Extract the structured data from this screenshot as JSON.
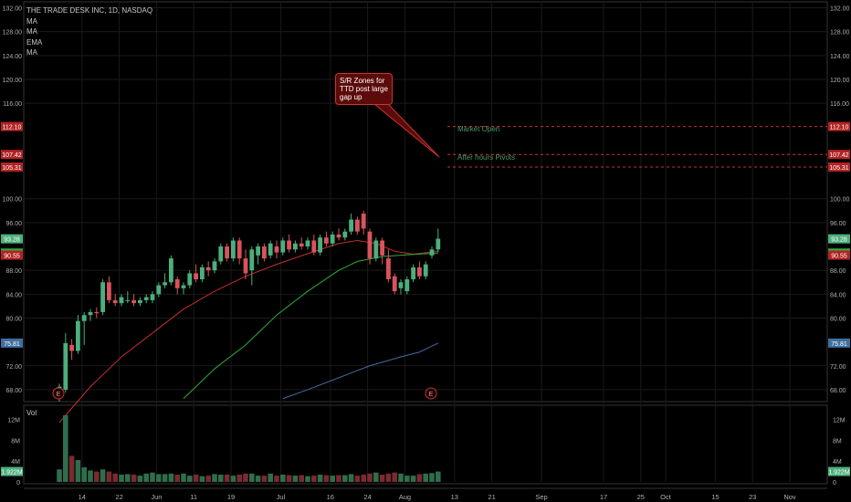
{
  "legend": {
    "symbol": "THE TRADE DESK INC, 1D, NASDAQ",
    "indicators": [
      "MA",
      "MA",
      "EMA",
      "MA"
    ]
  },
  "volume_label": "Vol",
  "annotation": {
    "text": "S/R Zones for TTD post large gap up",
    "zones": [
      {
        "label": "Market Open",
        "level": 112.1
      },
      {
        "label": "",
        "level": 107.42
      },
      {
        "label": "After hours Pivots",
        "level": 105.31
      }
    ]
  },
  "colors": {
    "up": "#4caf7d",
    "down": "#d9535c",
    "ma_red": "#c0302b",
    "ma_green": "#2eaa3b",
    "ma_blue": "#3f6f9f",
    "zone_line": "#c9342f",
    "grid": "#1a1a1a",
    "axis_text": "#b0b0b0"
  },
  "chart_data": {
    "type": "candlestick",
    "ylim": [
      66,
      133
    ],
    "yticks": [
      132.0,
      128.0,
      124.0,
      120.0,
      116.0,
      112.1,
      107.42,
      105.31,
      100.0,
      96.0,
      93.28,
      90.9,
      88.0,
      84.0,
      80.0,
      75.81,
      72.0,
      68.0
    ],
    "price_labels": [
      {
        "value": 112.1,
        "text": "112.10",
        "color": "#b22323"
      },
      {
        "value": 107.42,
        "text": "107.42",
        "color": "#b22323"
      },
      {
        "value": 105.31,
        "text": "105.31",
        "color": "#b22323"
      },
      {
        "value": 93.28,
        "text": "93.28",
        "color": "#4caf7d"
      },
      {
        "value": 90.9,
        "text": "90.90",
        "color": "#2eaa3b"
      },
      {
        "value": 90.55,
        "text": "90.55",
        "color": "#b22323"
      },
      {
        "value": 75.81,
        "text": "75.81",
        "color": "#3f6f9f"
      }
    ],
    "xticks": [
      {
        "label": "14",
        "index": 1
      },
      {
        "label": "22",
        "index": 7
      },
      {
        "label": "Jun",
        "index": 13
      },
      {
        "label": "11",
        "index": 19
      },
      {
        "label": "19",
        "index": 25
      },
      {
        "label": "Jul",
        "index": 33
      },
      {
        "label": "16",
        "index": 41
      },
      {
        "label": "24",
        "index": 47
      },
      {
        "label": "Aug",
        "index": 53
      },
      {
        "label": "13",
        "index": 61
      },
      {
        "label": "21",
        "index": 67
      },
      {
        "label": "Sep",
        "index": 75
      },
      {
        "label": "17",
        "index": 85
      },
      {
        "label": "25",
        "index": 91
      },
      {
        "label": "Oct",
        "index": 95
      },
      {
        "label": "15",
        "index": 103
      },
      {
        "label": "23",
        "index": 109
      },
      {
        "label": "Nov",
        "index": 115
      }
    ],
    "earnings": [
      {
        "label": "E",
        "index": 0
      },
      {
        "label": "E",
        "index": 60
      }
    ],
    "candles": [
      {
        "o": 67.0,
        "h": 69.0,
        "l": 66.0,
        "c": 68.5
      },
      {
        "o": 68.0,
        "h": 77.5,
        "l": 67.5,
        "c": 75.8
      },
      {
        "o": 75.5,
        "h": 76.5,
        "l": 73.0,
        "c": 74.5
      },
      {
        "o": 74.5,
        "h": 80.5,
        "l": 74.0,
        "c": 79.5
      },
      {
        "o": 79.5,
        "h": 81.0,
        "l": 75.5,
        "c": 80.5
      },
      {
        "o": 80.5,
        "h": 81.5,
        "l": 79.5,
        "c": 81.0
      },
      {
        "o": 81.0,
        "h": 81.8,
        "l": 80.0,
        "c": 80.8
      },
      {
        "o": 81.0,
        "h": 86.5,
        "l": 80.5,
        "c": 86.0
      },
      {
        "o": 86.0,
        "h": 87.0,
        "l": 82.5,
        "c": 83.0
      },
      {
        "o": 83.0,
        "h": 84.0,
        "l": 82.0,
        "c": 82.5
      },
      {
        "o": 82.5,
        "h": 84.0,
        "l": 82.0,
        "c": 83.5
      },
      {
        "o": 83.0,
        "h": 84.5,
        "l": 82.5,
        "c": 83.0
      },
      {
        "o": 83.0,
        "h": 84.0,
        "l": 82.0,
        "c": 82.5
      },
      {
        "o": 82.5,
        "h": 83.5,
        "l": 82.0,
        "c": 83.0
      },
      {
        "o": 83.0,
        "h": 84.0,
        "l": 82.5,
        "c": 83.5
      },
      {
        "o": 83.0,
        "h": 84.5,
        "l": 82.5,
        "c": 84.0
      },
      {
        "o": 84.0,
        "h": 86.0,
        "l": 83.5,
        "c": 85.5
      },
      {
        "o": 85.5,
        "h": 87.5,
        "l": 85.0,
        "c": 86.0
      },
      {
        "o": 86.0,
        "h": 90.5,
        "l": 85.5,
        "c": 90.0
      },
      {
        "o": 86.5,
        "h": 87.0,
        "l": 84.0,
        "c": 85.0
      },
      {
        "o": 85.0,
        "h": 86.0,
        "l": 84.0,
        "c": 85.5
      },
      {
        "o": 85.5,
        "h": 88.0,
        "l": 85.0,
        "c": 87.5
      },
      {
        "o": 87.5,
        "h": 89.0,
        "l": 86.0,
        "c": 86.5
      },
      {
        "o": 86.5,
        "h": 89.0,
        "l": 86.0,
        "c": 88.5
      },
      {
        "o": 88.5,
        "h": 89.5,
        "l": 87.0,
        "c": 88.0
      },
      {
        "o": 88.0,
        "h": 90.0,
        "l": 87.5,
        "c": 89.5
      },
      {
        "o": 89.5,
        "h": 92.5,
        "l": 89.0,
        "c": 92.0
      },
      {
        "o": 92.0,
        "h": 92.5,
        "l": 89.5,
        "c": 90.0
      },
      {
        "o": 90.0,
        "h": 93.5,
        "l": 89.5,
        "c": 93.0
      },
      {
        "o": 93.0,
        "h": 93.5,
        "l": 89.0,
        "c": 90.0
      },
      {
        "o": 90.0,
        "h": 91.5,
        "l": 86.5,
        "c": 87.5
      },
      {
        "o": 88.0,
        "h": 92.0,
        "l": 85.5,
        "c": 91.5
      },
      {
        "o": 90.5,
        "h": 92.5,
        "l": 89.0,
        "c": 92.0
      },
      {
        "o": 92.0,
        "h": 92.5,
        "l": 89.5,
        "c": 90.0
      },
      {
        "o": 90.5,
        "h": 93.0,
        "l": 90.0,
        "c": 92.5
      },
      {
        "o": 92.0,
        "h": 93.0,
        "l": 90.0,
        "c": 91.0
      },
      {
        "o": 91.0,
        "h": 93.5,
        "l": 90.5,
        "c": 93.0
      },
      {
        "o": 93.0,
        "h": 94.0,
        "l": 91.0,
        "c": 91.5
      },
      {
        "o": 91.5,
        "h": 93.0,
        "l": 91.0,
        "c": 92.5
      },
      {
        "o": 92.5,
        "h": 93.5,
        "l": 91.5,
        "c": 92.0
      },
      {
        "o": 92.0,
        "h": 93.5,
        "l": 91.5,
        "c": 93.0
      },
      {
        "o": 93.0,
        "h": 94.0,
        "l": 90.5,
        "c": 91.0
      },
      {
        "o": 91.0,
        "h": 94.0,
        "l": 90.5,
        "c": 93.5
      },
      {
        "o": 93.5,
        "h": 94.5,
        "l": 92.0,
        "c": 92.5
      },
      {
        "o": 92.5,
        "h": 94.5,
        "l": 92.0,
        "c": 94.0
      },
      {
        "o": 94.0,
        "h": 95.0,
        "l": 93.0,
        "c": 93.5
      },
      {
        "o": 93.5,
        "h": 95.0,
        "l": 93.0,
        "c": 94.5
      },
      {
        "o": 94.5,
        "h": 97.5,
        "l": 94.0,
        "c": 96.5
      },
      {
        "o": 96.5,
        "h": 97.0,
        "l": 94.0,
        "c": 94.5
      },
      {
        "o": 97.5,
        "h": 98.0,
        "l": 94.0,
        "c": 95.0
      },
      {
        "o": 94.5,
        "h": 95.0,
        "l": 89.0,
        "c": 90.0
      },
      {
        "o": 90.0,
        "h": 93.5,
        "l": 89.5,
        "c": 93.0
      },
      {
        "o": 93.0,
        "h": 93.5,
        "l": 89.0,
        "c": 90.5
      },
      {
        "o": 90.0,
        "h": 91.5,
        "l": 86.0,
        "c": 86.5
      },
      {
        "o": 87.0,
        "h": 87.5,
        "l": 84.0,
        "c": 84.5
      },
      {
        "o": 85.0,
        "h": 86.5,
        "l": 84.0,
        "c": 86.0
      },
      {
        "o": 84.5,
        "h": 87.0,
        "l": 84.0,
        "c": 86.5
      },
      {
        "o": 86.5,
        "h": 89.0,
        "l": 86.0,
        "c": 88.5
      },
      {
        "o": 88.5,
        "h": 89.5,
        "l": 86.5,
        "c": 87.0
      },
      {
        "o": 87.0,
        "h": 89.5,
        "l": 86.5,
        "c": 89.0
      },
      {
        "o": 90.5,
        "h": 92.0,
        "l": 90.0,
        "c": 91.5
      },
      {
        "o": 91.5,
        "h": 95.0,
        "l": 91.0,
        "c": 93.3
      }
    ],
    "volume": {
      "ylim": [
        0,
        14.0
      ],
      "yticks": [
        {
          "value": 12,
          "label": "12M"
        },
        {
          "value": 8,
          "label": "8M"
        },
        {
          "value": 4,
          "label": "4M"
        },
        {
          "value": 0,
          "label": "0"
        }
      ],
      "last_label": "1.922M",
      "values": [
        2.4,
        12.8,
        5.0,
        4.2,
        2.8,
        2.2,
        2.0,
        2.4,
        2.0,
        1.6,
        1.4,
        1.5,
        1.4,
        1.2,
        1.6,
        1.8,
        1.5,
        1.5,
        1.6,
        1.4,
        1.6,
        1.2,
        1.4,
        1.1,
        1.2,
        1.5,
        1.4,
        1.4,
        1.2,
        1.4,
        1.6,
        1.6,
        1.2,
        1.2,
        1.6,
        1.2,
        1.4,
        1.3,
        1.2,
        1.3,
        1.1,
        1.2,
        1.4,
        1.3,
        1.2,
        1.3,
        1.3,
        1.5,
        1.2,
        1.4,
        1.6,
        1.8,
        1.4,
        1.6,
        1.8,
        1.6,
        1.2,
        1.2,
        1.5,
        1.6,
        1.7,
        2.0
      ]
    },
    "ma_red": [
      [
        0,
        62.5
      ],
      [
        5,
        68.5
      ],
      [
        10,
        73.5
      ],
      [
        15,
        77.5
      ],
      [
        20,
        81.5
      ],
      [
        25,
        84.5
      ],
      [
        30,
        87.0
      ],
      [
        35,
        89.0
      ],
      [
        40,
        90.8
      ],
      [
        45,
        92.5
      ],
      [
        48,
        93.0
      ],
      [
        51,
        92.5
      ],
      [
        54,
        91.2
      ],
      [
        57,
        90.7
      ],
      [
        61,
        91.2
      ]
    ],
    "ma_green": [
      [
        20,
        66.5
      ],
      [
        25,
        71.5
      ],
      [
        30,
        75.5
      ],
      [
        35,
        80.5
      ],
      [
        40,
        84.5
      ],
      [
        45,
        88.0
      ],
      [
        48,
        89.5
      ],
      [
        52,
        90.3
      ],
      [
        56,
        90.6
      ],
      [
        61,
        90.9
      ]
    ],
    "ma_blue": [
      [
        36,
        66.5
      ],
      [
        40,
        68.0
      ],
      [
        45,
        70.0
      ],
      [
        50,
        72.0
      ],
      [
        55,
        73.5
      ],
      [
        58,
        74.3
      ],
      [
        61,
        75.8
      ]
    ]
  }
}
